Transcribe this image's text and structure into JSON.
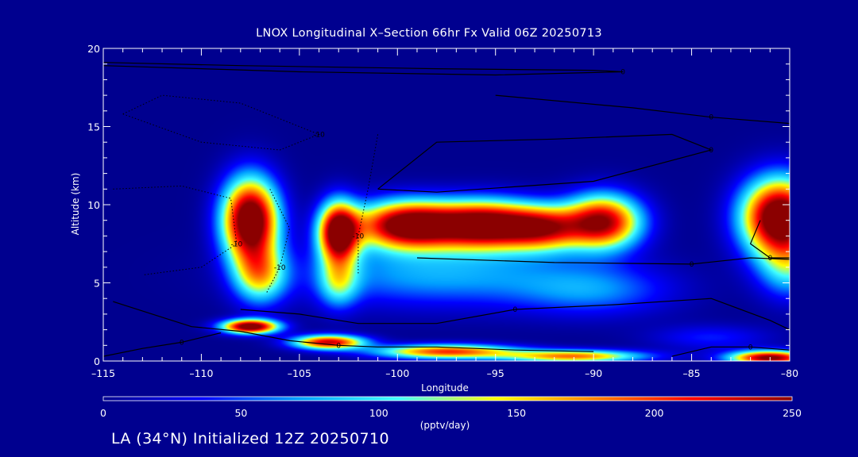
{
  "colors": {
    "background": "#00008f",
    "axis": "#ffffff",
    "contour": "#000000",
    "colormap": [
      "#00008f",
      "#0000ff",
      "#00a0ff",
      "#40ffff",
      "#ffff00",
      "#ff8000",
      "#ff0000",
      "#8b0000"
    ]
  },
  "chart_data": {
    "type": "heatmap",
    "title": "LNOX Longitudinal X–Section 66hr  Fx Valid 06Z 20250713",
    "xlabel": "Longitude",
    "ylabel": "Altitude (km)",
    "xlim": [
      -115,
      -80
    ],
    "ylim": [
      0,
      20
    ],
    "x_ticks": [
      -115,
      -110,
      -105,
      -100,
      -95,
      -90,
      -85,
      -80
    ],
    "x_tick_labels": [
      "–115",
      "–110",
      "–105",
      "–100",
      "–95",
      "–90",
      "–85",
      "–80"
    ],
    "y_ticks": [
      0,
      5,
      10,
      15,
      20
    ],
    "y_tick_labels": [
      "0",
      "5",
      "10",
      "15",
      "20"
    ],
    "colorbar": {
      "label": "(pptv/day)",
      "range": [
        0,
        250
      ],
      "ticks": [
        0,
        50,
        100,
        150,
        200,
        250
      ],
      "tick_labels": [
        "0",
        "50",
        "100",
        "150",
        "200",
        "250"
      ]
    },
    "features": [
      {
        "lon": -107.5,
        "alt": 9.0,
        "sx": 1.4,
        "sy": 2.6,
        "value": 300
      },
      {
        "lon": -107.0,
        "alt": 5.5,
        "sx": 1.3,
        "sy": 1.8,
        "value": 130
      },
      {
        "lon": -103.0,
        "alt": 8.2,
        "sx": 1.0,
        "sy": 1.9,
        "value": 280
      },
      {
        "lon": -103.0,
        "alt": 5.0,
        "sx": 1.0,
        "sy": 1.6,
        "value": 90
      },
      {
        "lon": -99.5,
        "alt": 8.7,
        "sx": 2.6,
        "sy": 1.5,
        "value": 280
      },
      {
        "lon": -95.5,
        "alt": 8.7,
        "sx": 2.6,
        "sy": 1.5,
        "value": 270
      },
      {
        "lon": -92.5,
        "alt": 8.5,
        "sx": 2.0,
        "sy": 1.4,
        "value": 180
      },
      {
        "lon": -89.5,
        "alt": 8.9,
        "sx": 1.9,
        "sy": 1.7,
        "value": 240
      },
      {
        "lon": -98.0,
        "alt": 5.5,
        "sx": 7.0,
        "sy": 2.0,
        "value": 75
      },
      {
        "lon": -90.0,
        "alt": 4.5,
        "sx": 4.0,
        "sy": 1.6,
        "value": 60
      },
      {
        "lon": -80.5,
        "alt": 9.2,
        "sx": 1.9,
        "sy": 2.4,
        "value": 300
      },
      {
        "lon": -80.0,
        "alt": 6.0,
        "sx": 1.6,
        "sy": 2.0,
        "value": 90
      },
      {
        "lon": -107.5,
        "alt": 2.2,
        "sx": 1.4,
        "sy": 0.45,
        "value": 280
      },
      {
        "lon": -103.5,
        "alt": 1.2,
        "sx": 1.8,
        "sy": 0.45,
        "value": 230
      },
      {
        "lon": -97.5,
        "alt": 0.6,
        "sx": 3.5,
        "sy": 0.45,
        "value": 200
      },
      {
        "lon": -91.0,
        "alt": 0.3,
        "sx": 3.5,
        "sy": 0.4,
        "value": 180
      },
      {
        "lon": -81.0,
        "alt": 0.2,
        "sx": 2.0,
        "sy": 0.45,
        "value": 260
      },
      {
        "lon": -84.0,
        "alt": 1.5,
        "sx": 3.0,
        "sy": 0.8,
        "value": 40
      }
    ],
    "contours": [
      {
        "label": "0",
        "style": "solid",
        "points": [
          [
            -115,
            19.1
          ],
          [
            -108,
            18.9
          ],
          [
            -98,
            18.7
          ],
          [
            -90,
            18.6
          ],
          [
            -88.5,
            18.5
          ],
          [
            -95,
            18.3
          ],
          [
            -105,
            18.5
          ],
          [
            -115,
            18.9
          ]
        ]
      },
      {
        "label": "0",
        "style": "solid",
        "points": [
          [
            -95,
            17.0
          ],
          [
            -88,
            16.2
          ],
          [
            -84,
            15.6
          ],
          [
            -80,
            15.2
          ]
        ]
      },
      {
        "label": "0",
        "style": "solid",
        "points": [
          [
            -101,
            11.0
          ],
          [
            -98,
            14.0
          ],
          [
            -92,
            14.2
          ],
          [
            -86,
            14.5
          ],
          [
            -84,
            13.5
          ],
          [
            -90,
            11.5
          ],
          [
            -98,
            10.8
          ],
          [
            -101,
            11.0
          ]
        ]
      },
      {
        "label": "0",
        "style": "solid",
        "points": [
          [
            -99,
            6.6
          ],
          [
            -92,
            6.3
          ],
          [
            -85,
            6.2
          ],
          [
            -82,
            6.6
          ],
          [
            -80,
            6.5
          ]
        ]
      },
      {
        "label": "0",
        "style": "solid",
        "points": [
          [
            -108,
            3.3
          ],
          [
            -105,
            3.0
          ],
          [
            -102,
            2.4
          ],
          [
            -98,
            2.4
          ],
          [
            -94,
            3.3
          ],
          [
            -89,
            3.6
          ],
          [
            -84,
            4.0
          ],
          [
            -81,
            2.6
          ],
          [
            -80,
            2.0
          ]
        ]
      },
      {
        "label": "0",
        "style": "solid",
        "points": [
          [
            -114.5,
            3.8
          ],
          [
            -112.5,
            3.0
          ],
          [
            -110.5,
            2.2
          ],
          [
            -108,
            1.9
          ],
          [
            -105.5,
            1.3
          ],
          [
            -103,
            1.0
          ],
          [
            -101,
            0.9
          ],
          [
            -98,
            0.9
          ],
          [
            -94,
            0.7
          ],
          [
            -90,
            0.6
          ]
        ]
      },
      {
        "label": "0",
        "style": "solid",
        "points": [
          [
            -115,
            0.3
          ],
          [
            -113,
            0.8
          ],
          [
            -111,
            1.2
          ],
          [
            -109,
            1.8
          ]
        ]
      },
      {
        "label": "0",
        "style": "solid",
        "points": [
          [
            -86,
            0.3
          ],
          [
            -84,
            0.9
          ],
          [
            -82,
            0.9
          ],
          [
            -80,
            0.7
          ]
        ]
      },
      {
        "label": "0",
        "style": "solid",
        "points": [
          [
            -81.5,
            9.0
          ],
          [
            -82,
            7.5
          ],
          [
            -81,
            6.6
          ],
          [
            -80,
            6.6
          ]
        ]
      },
      {
        "label": "-10",
        "style": "dotted",
        "points": [
          [
            -114,
            15.8
          ],
          [
            -110,
            14.0
          ],
          [
            -106,
            13.5
          ],
          [
            -104,
            14.5
          ],
          [
            -108,
            16.5
          ],
          [
            -112,
            17.0
          ],
          [
            -114,
            15.8
          ]
        ]
      },
      {
        "label": "-10",
        "style": "dotted",
        "points": [
          [
            -114.5,
            11.0
          ],
          [
            -111,
            11.2
          ],
          [
            -108.5,
            10.4
          ],
          [
            -108.2,
            7.5
          ],
          [
            -110,
            6.0
          ],
          [
            -113,
            5.5
          ]
        ]
      },
      {
        "label": "-10",
        "style": "dotted",
        "points": [
          [
            -106.5,
            11.0
          ],
          [
            -105.5,
            8.5
          ],
          [
            -106.0,
            6.0
          ],
          [
            -106.7,
            4.3
          ]
        ]
      },
      {
        "label": "-10",
        "style": "dotted",
        "points": [
          [
            -101,
            14.5
          ],
          [
            -101.5,
            11.0
          ],
          [
            -102,
            8.0
          ],
          [
            -102,
            5.5
          ]
        ]
      }
    ]
  },
  "footer": {
    "text": "LA (34°N) Initialized 12Z 20250710"
  }
}
